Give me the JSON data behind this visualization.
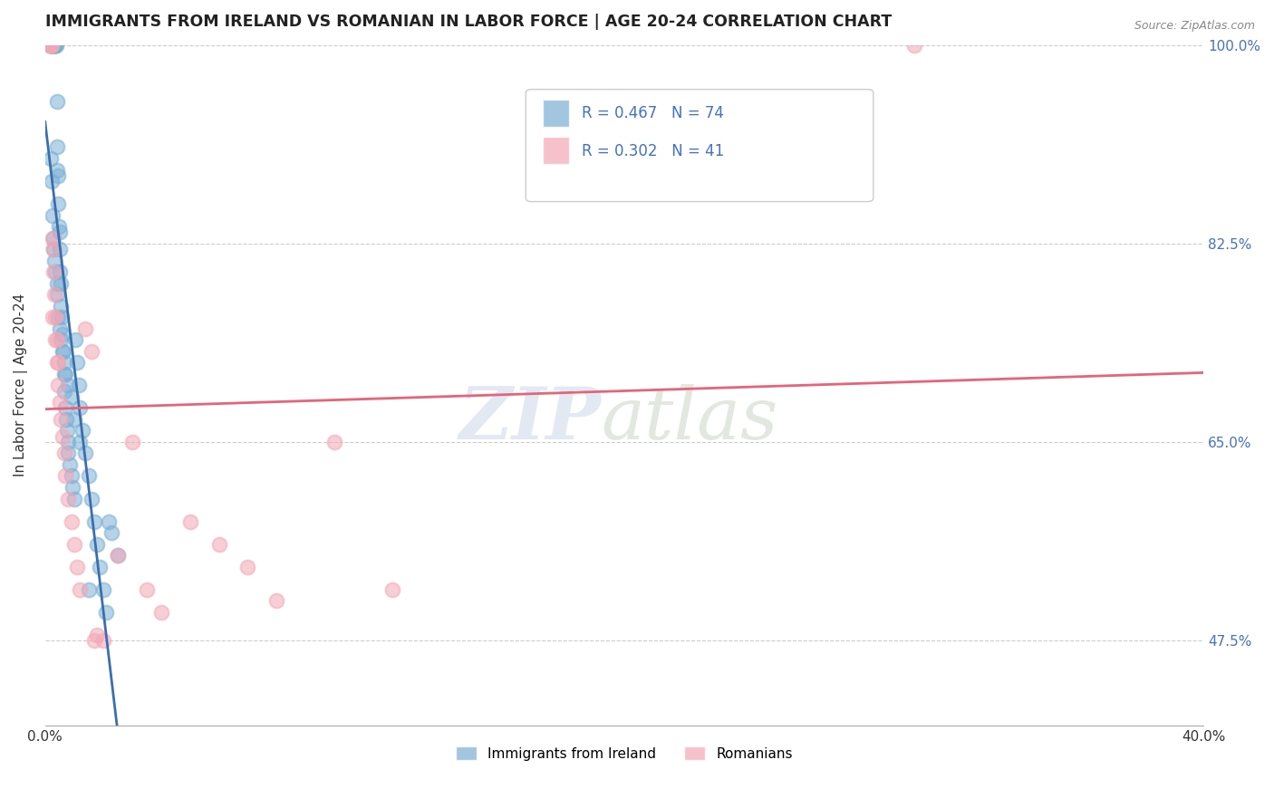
{
  "title": "IMMIGRANTS FROM IRELAND VS ROMANIAN IN LABOR FORCE | AGE 20-24 CORRELATION CHART",
  "source": "Source: ZipAtlas.com",
  "ylabel": "In Labor Force | Age 20-24",
  "x_min": 0.0,
  "x_max": 40.0,
  "y_min": 40.0,
  "y_max": 100.0,
  "y_ticks": [
    47.5,
    65.0,
    82.5,
    100.0
  ],
  "y_tick_labels": [
    "47.5%",
    "65.0%",
    "82.5%",
    "100.0%"
  ],
  "ireland_color": "#7bafd4",
  "romanian_color": "#f4a7b5",
  "ireland_line_color": "#3a6fad",
  "romanian_line_color": "#e8637a",
  "ireland_x": [
    0.15,
    0.18,
    0.2,
    0.22,
    0.25,
    0.25,
    0.28,
    0.3,
    0.3,
    0.32,
    0.35,
    0.35,
    0.38,
    0.4,
    0.4,
    0.42,
    0.45,
    0.45,
    0.48,
    0.5,
    0.5,
    0.52,
    0.55,
    0.55,
    0.58,
    0.6,
    0.62,
    0.65,
    0.68,
    0.7,
    0.72,
    0.75,
    0.78,
    0.8,
    0.85,
    0.9,
    0.95,
    1.0,
    1.05,
    1.1,
    1.15,
    1.2,
    1.3,
    1.4,
    1.5,
    1.6,
    1.7,
    1.8,
    1.9,
    2.0,
    2.1,
    2.2,
    2.3,
    2.5,
    0.2,
    0.22,
    0.25,
    0.28,
    0.3,
    0.33,
    0.36,
    0.4,
    0.43,
    0.46,
    0.5,
    0.55,
    0.6,
    0.65,
    0.7,
    0.8,
    0.9,
    1.0,
    1.2,
    1.5
  ],
  "ireland_y": [
    100.0,
    100.0,
    100.0,
    100.0,
    100.0,
    100.0,
    100.0,
    100.0,
    100.0,
    100.0,
    100.0,
    100.0,
    100.0,
    95.0,
    91.0,
    89.0,
    88.5,
    86.0,
    84.0,
    83.5,
    82.0,
    80.0,
    79.0,
    77.0,
    76.0,
    74.5,
    73.0,
    71.0,
    69.5,
    68.0,
    67.0,
    66.0,
    65.0,
    64.0,
    63.0,
    62.0,
    61.0,
    60.0,
    74.0,
    72.0,
    70.0,
    68.0,
    66.0,
    64.0,
    62.0,
    60.0,
    58.0,
    56.0,
    54.0,
    52.0,
    50.0,
    58.0,
    57.0,
    55.0,
    90.0,
    88.0,
    85.0,
    83.0,
    82.0,
    81.0,
    80.0,
    79.0,
    78.0,
    76.0,
    75.0,
    74.0,
    73.0,
    72.0,
    71.0,
    70.0,
    69.0,
    67.0,
    65.0,
    52.0
  ],
  "romanian_x": [
    0.15,
    0.18,
    0.2,
    0.22,
    0.25,
    0.28,
    0.3,
    0.33,
    0.36,
    0.4,
    0.43,
    0.46,
    0.5,
    0.55,
    0.6,
    0.65,
    0.7,
    0.8,
    0.9,
    1.0,
    1.1,
    1.2,
    1.4,
    1.6,
    1.8,
    2.0,
    2.5,
    3.0,
    3.5,
    4.0,
    5.0,
    6.0,
    7.0,
    8.0,
    10.0,
    12.0,
    30.0,
    0.25,
    0.35,
    0.45,
    1.7
  ],
  "romanian_y": [
    100.0,
    100.0,
    100.0,
    100.0,
    83.0,
    82.0,
    80.0,
    78.0,
    76.0,
    74.0,
    72.0,
    70.0,
    68.5,
    67.0,
    65.5,
    64.0,
    62.0,
    60.0,
    58.0,
    56.0,
    54.0,
    52.0,
    75.0,
    73.0,
    48.0,
    47.5,
    55.0,
    65.0,
    52.0,
    50.0,
    58.0,
    56.0,
    54.0,
    51.0,
    65.0,
    52.0,
    100.0,
    76.0,
    74.0,
    72.0,
    47.5
  ]
}
